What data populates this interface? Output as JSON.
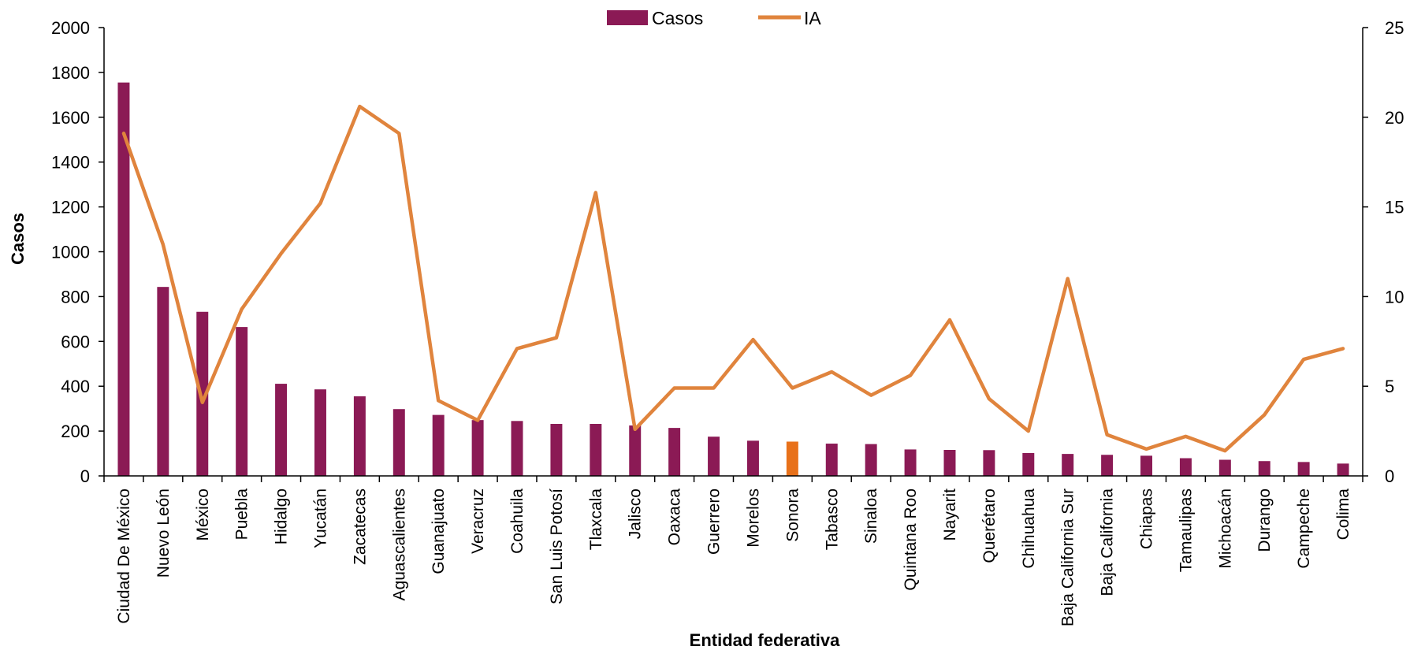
{
  "chart_data": {
    "type": "bar",
    "xlabel": "Entidad federativa",
    "ylabel": "Casos",
    "y2label": "",
    "ylim": [
      0,
      2000
    ],
    "y2lim": [
      0,
      25
    ],
    "yticks": [
      "0",
      "200",
      "400",
      "600",
      "800",
      "1000",
      "1200",
      "1400",
      "1600",
      "1800",
      "2000"
    ],
    "y2ticks": [
      "0",
      "5",
      "10",
      "15",
      "20",
      "25"
    ],
    "legend": {
      "position": "top-center"
    },
    "grid": false,
    "categories": [
      "Ciudad De México",
      "Nuevo León",
      "México",
      "Puebla",
      "Hidalgo",
      "Yucatán",
      "Zacatecas",
      "Aguascalientes",
      "Guanajuato",
      "Veracruz",
      "Coahuila",
      "San Luis Potosí",
      "Tlaxcala",
      "Jalisco",
      "Oaxaca",
      "Guerrero",
      "Morelos",
      "Sonora",
      "Tabasco",
      "Sinaloa",
      "Quintana Roo",
      "Nayarit",
      "Querétaro",
      "Chihuahua",
      "Baja California Sur",
      "Baja California",
      "Chiapas",
      "Tamaulipas",
      "Michoacán",
      "Durango",
      "Campeche",
      "Colima"
    ],
    "highlight_category": "Sonora",
    "series": [
      {
        "name": "Casos",
        "type": "bar",
        "axis": "left",
        "color": "#8B1A55",
        "highlight_color": "#E8711A",
        "values": [
          1755,
          843,
          732,
          664,
          411,
          386,
          355,
          298,
          272,
          249,
          245,
          232,
          232,
          225,
          214,
          175,
          157,
          153,
          144,
          142,
          118,
          116,
          115,
          102,
          98,
          94,
          90,
          79,
          72,
          66,
          62,
          55
        ]
      },
      {
        "name": "IA",
        "type": "line",
        "axis": "right",
        "color": "#E0843D",
        "values": [
          19.1,
          12.9,
          4.1,
          9.3,
          12.4,
          15.2,
          20.6,
          19.1,
          4.2,
          3.1,
          7.1,
          7.7,
          15.8,
          2.6,
          4.9,
          4.9,
          7.6,
          4.9,
          5.8,
          4.5,
          5.6,
          8.7,
          4.3,
          2.5,
          11.0,
          2.3,
          1.5,
          2.2,
          1.4,
          3.4,
          6.5,
          7.1
        ]
      }
    ]
  }
}
